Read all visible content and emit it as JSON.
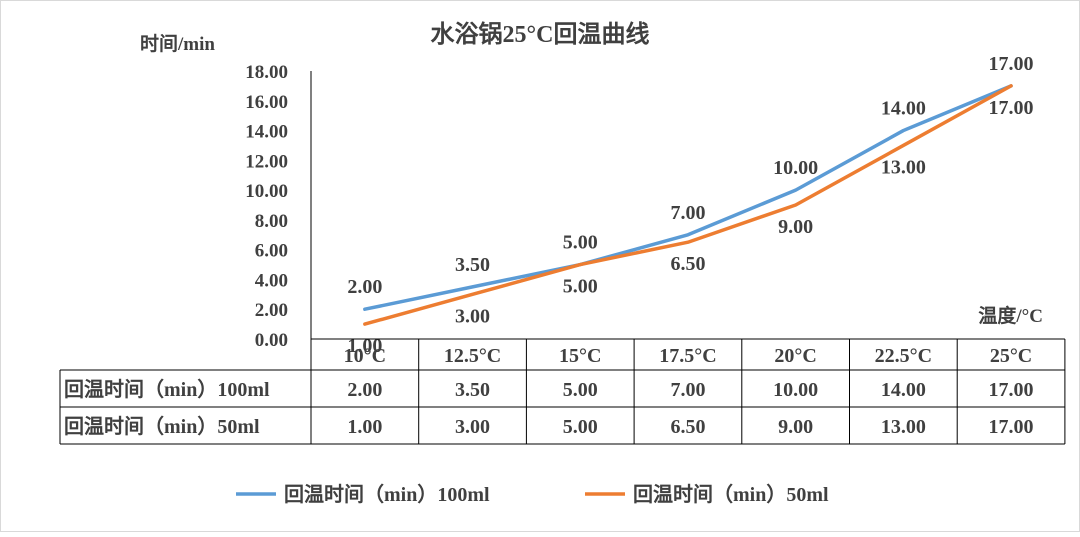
{
  "colors": {
    "series_100ml": "#5B9BD5",
    "series_50ml": "#ED7D31",
    "text": "#404040"
  },
  "chart_data": {
    "type": "line",
    "title": "水浴锅25°C回温曲线",
    "ylabel": "时间/min",
    "xlabel": "温度/°C",
    "ylim": [
      0,
      18
    ],
    "yticks": [
      "0.00",
      "2.00",
      "4.00",
      "6.00",
      "8.00",
      "10.00",
      "12.00",
      "14.00",
      "16.00",
      "18.00"
    ],
    "categories": [
      "10°C",
      "12.5°C",
      "15°C",
      "17.5°C",
      "20°C",
      "22.5°C",
      "25°C"
    ],
    "series": [
      {
        "name": "回温时间（min）100ml",
        "values": [
          2.0,
          3.5,
          5.0,
          7.0,
          10.0,
          14.0,
          17.0
        ],
        "labels": [
          "2.00",
          "3.50",
          "5.00",
          "7.00",
          "10.00",
          "14.00",
          "17.00"
        ]
      },
      {
        "name": "回温时间（min）50ml",
        "values": [
          1.0,
          3.0,
          5.0,
          6.5,
          9.0,
          13.0,
          17.0
        ],
        "labels": [
          "1.00",
          "3.00",
          "5.00",
          "6.50",
          "9.00",
          "13.00",
          "17.00"
        ]
      }
    ],
    "grid": false,
    "legend": "bottom",
    "data_table": true
  }
}
